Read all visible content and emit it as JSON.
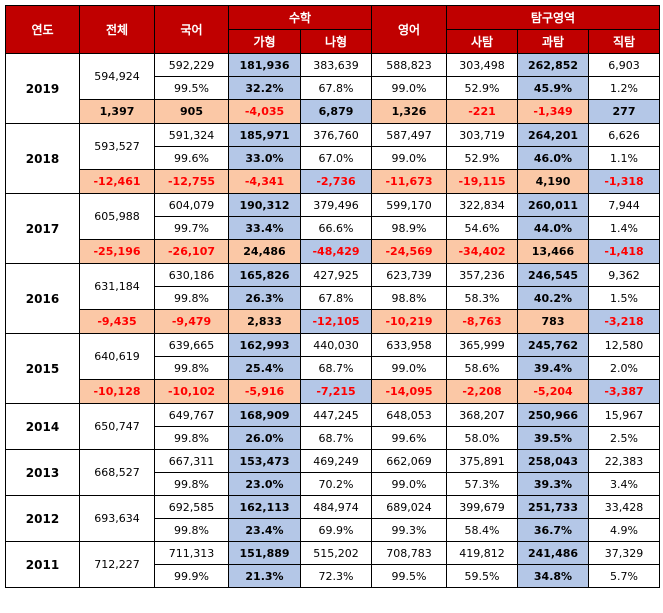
{
  "headers": {
    "year": "연도",
    "total": "전체",
    "korean": "국어",
    "math": "수학",
    "math_ga": "가형",
    "math_na": "나형",
    "english": "영어",
    "inquiry": "탐구영역",
    "social": "사탐",
    "science": "과탐",
    "vocational": "직탐"
  },
  "rows": [
    {
      "year": "2019",
      "total": "594,924",
      "count": [
        "592,229",
        "181,936",
        "383,639",
        "588,823",
        "303,498",
        "262,852",
        "6,903"
      ],
      "pct": [
        "99.5%",
        "32.2%",
        "67.8%",
        "99.0%",
        "52.9%",
        "45.9%",
        "1.2%"
      ],
      "diff": [
        "1,397",
        "905",
        "-4,035",
        "6,879",
        "1,326",
        "-221",
        "-1,349",
        "277"
      ]
    },
    {
      "year": "2018",
      "total": "593,527",
      "count": [
        "591,324",
        "185,971",
        "376,760",
        "587,497",
        "303,719",
        "264,201",
        "6,626"
      ],
      "pct": [
        "99.6%",
        "33.0%",
        "67.0%",
        "99.0%",
        "52.9%",
        "46.0%",
        "1.1%"
      ],
      "diff": [
        "-12,461",
        "-12,755",
        "-4,341",
        "-2,736",
        "-11,673",
        "-19,115",
        "4,190",
        "-1,318"
      ]
    },
    {
      "year": "2017",
      "total": "605,988",
      "count": [
        "604,079",
        "190,312",
        "379,496",
        "599,170",
        "322,834",
        "260,011",
        "7,944"
      ],
      "pct": [
        "99.7%",
        "33.4%",
        "66.6%",
        "98.9%",
        "54.6%",
        "44.0%",
        "1.4%"
      ],
      "diff": [
        "-25,196",
        "-26,107",
        "24,486",
        "-48,429",
        "-24,569",
        "-34,402",
        "13,466",
        "-1,418"
      ]
    },
    {
      "year": "2016",
      "total": "631,184",
      "count": [
        "630,186",
        "165,826",
        "427,925",
        "623,739",
        "357,236",
        "246,545",
        "9,362"
      ],
      "pct": [
        "99.8%",
        "26.3%",
        "67.8%",
        "98.8%",
        "58.3%",
        "40.2%",
        "1.5%"
      ],
      "diff": [
        "-9,435",
        "-9,479",
        "2,833",
        "-12,105",
        "-10,219",
        "-8,763",
        "783",
        "-3,218"
      ]
    },
    {
      "year": "2015",
      "total": "640,619",
      "count": [
        "639,665",
        "162,993",
        "440,030",
        "633,958",
        "365,999",
        "245,762",
        "12,580"
      ],
      "pct": [
        "99.8%",
        "25.4%",
        "68.7%",
        "99.0%",
        "58.6%",
        "39.4%",
        "2.0%"
      ],
      "diff": [
        "-10,128",
        "-10,102",
        "-5,916",
        "-7,215",
        "-14,095",
        "-2,208",
        "-5,204",
        "-3,387"
      ]
    },
    {
      "year": "2014",
      "total": "650,747",
      "count": [
        "649,767",
        "168,909",
        "447,245",
        "648,053",
        "368,207",
        "250,966",
        "15,967"
      ],
      "pct": [
        "99.8%",
        "26.0%",
        "68.7%",
        "99.6%",
        "58.0%",
        "39.5%",
        "2.5%"
      ]
    },
    {
      "year": "2013",
      "total": "668,527",
      "count": [
        "667,311",
        "153,473",
        "469,249",
        "662,069",
        "375,891",
        "258,043",
        "22,383"
      ],
      "pct": [
        "99.8%",
        "23.0%",
        "70.2%",
        "99.0%",
        "57.3%",
        "39.3%",
        "3.4%"
      ]
    },
    {
      "year": "2012",
      "total": "693,634",
      "count": [
        "692,585",
        "162,113",
        "484,974",
        "689,024",
        "399,679",
        "251,733",
        "33,428"
      ],
      "pct": [
        "99.8%",
        "23.4%",
        "69.9%",
        "99.3%",
        "58.4%",
        "36.7%",
        "4.9%"
      ]
    },
    {
      "year": "2011",
      "total": "712,227",
      "count": [
        "711,313",
        "151,889",
        "515,202",
        "708,783",
        "419,812",
        "241,486",
        "37,329"
      ],
      "pct": [
        "99.9%",
        "21.3%",
        "72.3%",
        "99.5%",
        "59.5%",
        "34.8%",
        "5.7%"
      ]
    }
  ]
}
